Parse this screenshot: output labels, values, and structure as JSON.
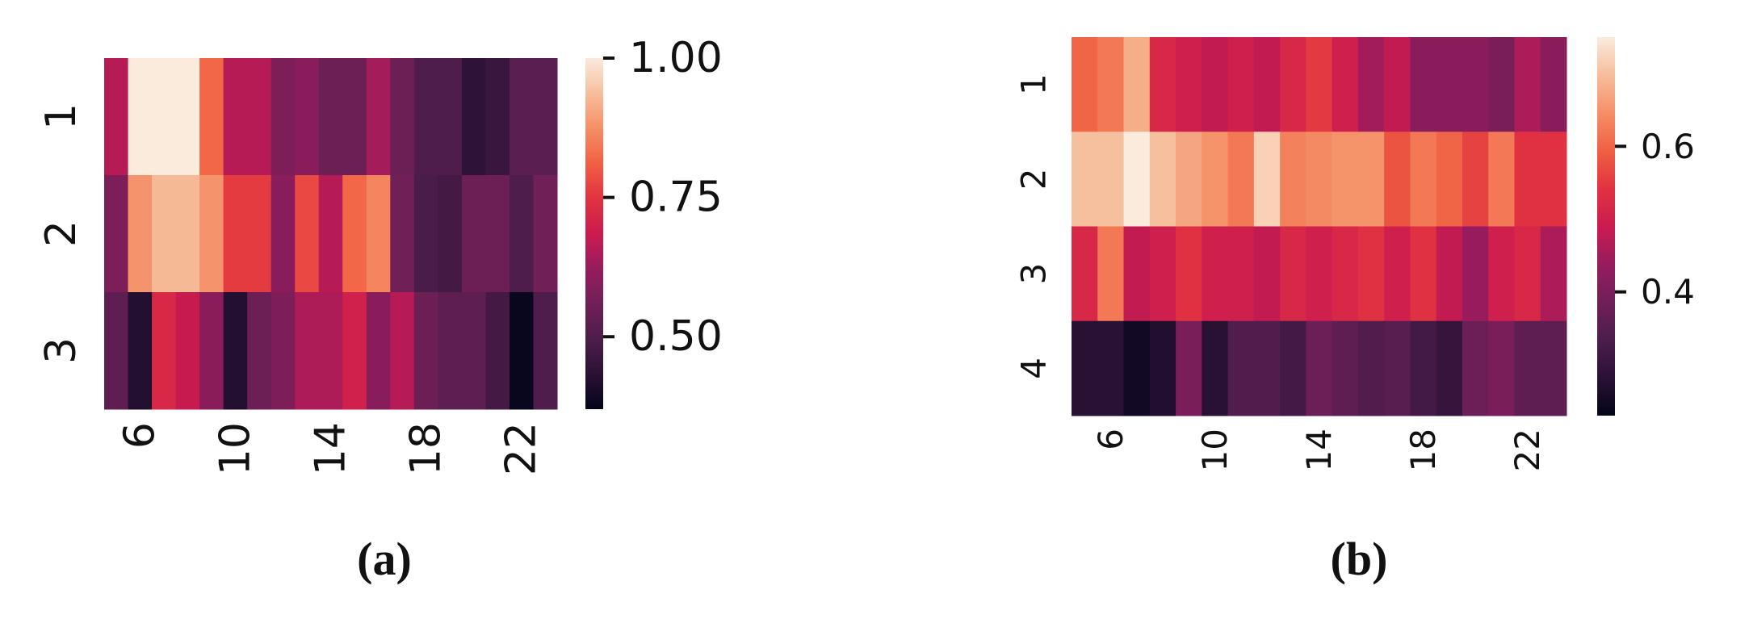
{
  "chart_data": [
    {
      "type": "heatmap",
      "caption": "(a)",
      "categories": [
        null,
        "6",
        null,
        null,
        null,
        "10",
        null,
        null,
        null,
        "14",
        null,
        null,
        null,
        "18",
        null,
        null,
        null,
        "22",
        null
      ],
      "rows": [
        "1",
        "2",
        "3"
      ],
      "values": [
        [
          0.66,
          1.0,
          1.0,
          1.0,
          0.82,
          0.66,
          0.66,
          0.58,
          0.6,
          0.55,
          0.55,
          0.64,
          0.55,
          0.5,
          0.5,
          0.44,
          0.46,
          0.52,
          0.52
        ],
        [
          0.58,
          0.88,
          0.93,
          0.93,
          0.88,
          0.76,
          0.76,
          0.6,
          0.78,
          0.66,
          0.82,
          0.86,
          0.56,
          0.49,
          0.48,
          0.55,
          0.55,
          0.5,
          0.56
        ],
        [
          0.53,
          0.42,
          0.72,
          0.68,
          0.6,
          0.42,
          0.55,
          0.58,
          0.65,
          0.65,
          0.7,
          0.6,
          0.66,
          0.55,
          0.53,
          0.53,
          0.48,
          0.38,
          0.5
        ]
      ],
      "clim": [
        0.37,
        1.0
      ],
      "cticks": [
        {
          "value": 0.5,
          "label": "0.50"
        },
        0.75,
        {
          "value": 1.0,
          "label": "1.00"
        }
      ],
      "colormap": "rocket"
    },
    {
      "type": "heatmap",
      "caption": "(b)",
      "categories": [
        null,
        "6",
        null,
        null,
        null,
        "10",
        null,
        null,
        null,
        "14",
        null,
        null,
        null,
        "18",
        null,
        null,
        null,
        "22",
        null
      ],
      "rows": [
        "1",
        "2",
        "3",
        "4"
      ],
      "values": [
        [
          0.6,
          0.62,
          0.68,
          0.52,
          0.5,
          0.48,
          0.5,
          0.48,
          0.52,
          0.55,
          0.5,
          0.45,
          0.48,
          0.42,
          0.42,
          0.42,
          0.4,
          0.46,
          0.42
        ],
        [
          0.7,
          0.7,
          0.75,
          0.7,
          0.67,
          0.65,
          0.62,
          0.72,
          0.63,
          0.64,
          0.65,
          0.65,
          0.58,
          0.62,
          0.6,
          0.56,
          0.62,
          0.54,
          0.54
        ],
        [
          0.52,
          0.62,
          0.48,
          0.5,
          0.54,
          0.5,
          0.5,
          0.48,
          0.52,
          0.5,
          0.52,
          0.54,
          0.5,
          0.54,
          0.48,
          0.44,
          0.5,
          0.52,
          0.46
        ],
        [
          0.28,
          0.28,
          0.25,
          0.27,
          0.4,
          0.28,
          0.34,
          0.34,
          0.32,
          0.38,
          0.36,
          0.34,
          0.35,
          0.32,
          0.3,
          0.38,
          0.4,
          0.36,
          0.36
        ]
      ],
      "clim": [
        0.23,
        0.75
      ],
      "cticks": [
        0.4,
        0.6
      ],
      "colormap": "rocket"
    }
  ]
}
